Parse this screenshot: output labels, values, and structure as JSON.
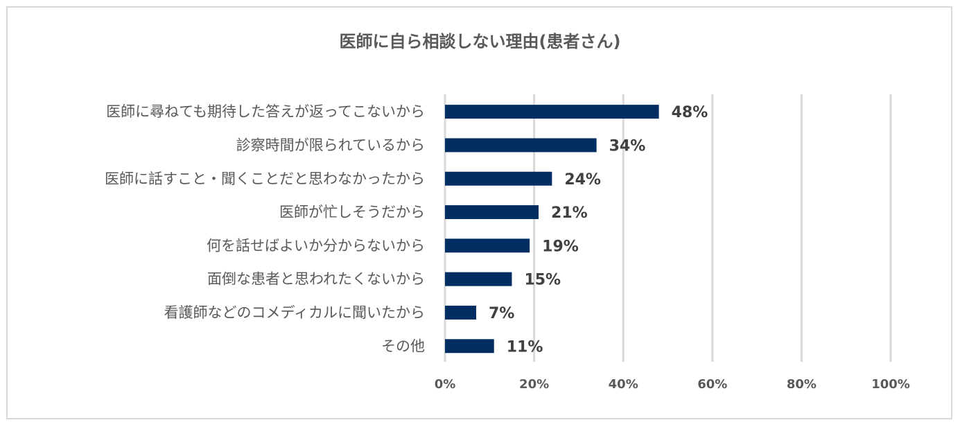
{
  "chart_data": {
    "type": "bar",
    "orientation": "horizontal",
    "title": "医師に自ら相談しない理由(患者さん)",
    "categories": [
      "医師に尋ねても期待した答えが返ってこないから",
      "診察時間が限られているから",
      "医師に話すこと・聞くことだと思わなかったから",
      "医師が忙しそうだから",
      "何を話せばよいか分からないから",
      "面倒な患者と思われたくないから",
      "看護師などのコメディカルに聞いたから",
      "その他"
    ],
    "values": [
      48,
      34,
      24,
      21,
      19,
      15,
      7,
      11
    ],
    "value_labels": [
      "48%",
      "34%",
      "24%",
      "21%",
      "19%",
      "15%",
      "7%",
      "11%"
    ],
    "xlim": [
      0,
      100
    ],
    "xticks": [
      0,
      20,
      40,
      60,
      80,
      100
    ],
    "xtick_labels": [
      "0%",
      "20%",
      "40%",
      "60%",
      "80%",
      "100%"
    ],
    "xlabel": "",
    "ylabel": "",
    "grid": "vertical",
    "legend": "none",
    "colors": {
      "bar": "#002d62",
      "grid": "#d9d9d9"
    }
  }
}
